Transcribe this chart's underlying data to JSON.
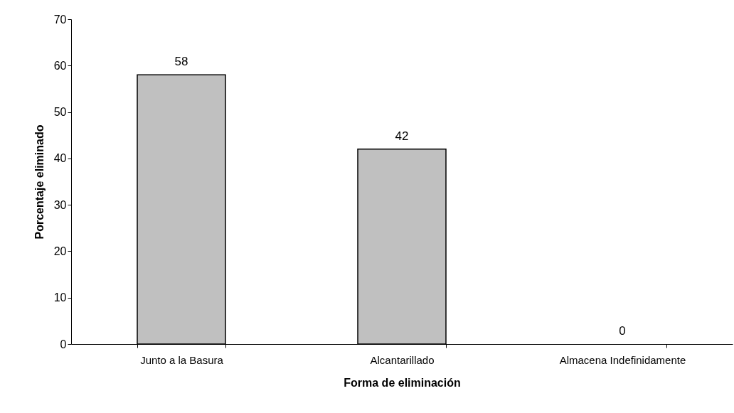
{
  "chart_data": {
    "type": "bar",
    "xlabel": "Forma de eliminación",
    "ylabel": "Porcentaje eliminado",
    "categories": [
      "Junto a la Basura",
      "Alcantarillado",
      "Almacena Indefinidamente"
    ],
    "values": [
      58,
      42,
      0
    ],
    "color": "#c0c0c0",
    "ylim": [
      0,
      70
    ],
    "yticks": [
      0,
      10,
      20,
      30,
      40,
      50,
      60,
      70
    ],
    "grid": false,
    "data_labels": true
  }
}
